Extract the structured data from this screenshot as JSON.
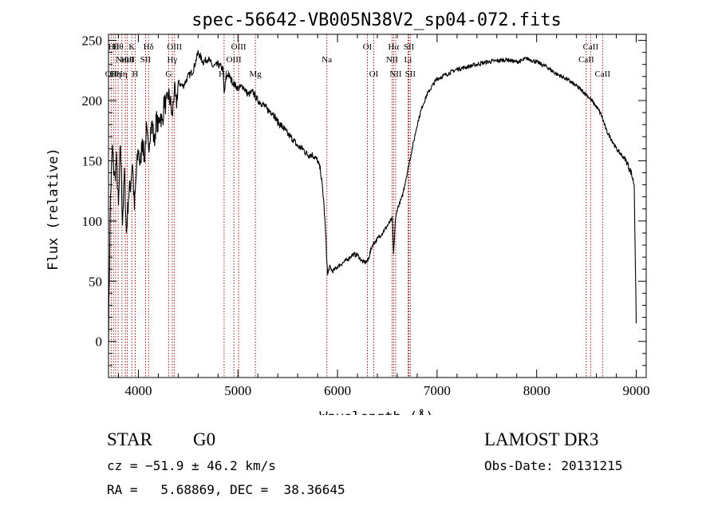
{
  "chart_data": {
    "type": "line",
    "title": "spec-56642-VB005N38V2_sp04-072.fits",
    "xlabel": "Wavelength (Å)",
    "ylabel": "Flux (relative)",
    "xlim": [
      3700,
      9100
    ],
    "ylim": [
      -30,
      255
    ],
    "xticks": [
      4000,
      5000,
      6000,
      7000,
      8000,
      9000
    ],
    "yticks": [
      0,
      50,
      100,
      150,
      200,
      250
    ],
    "series": [
      {
        "name": "flux",
        "x": [
          3700,
          3720,
          3740,
          3760,
          3780,
          3800,
          3820,
          3840,
          3860,
          3880,
          3900,
          3920,
          3940,
          3960,
          3980,
          4000,
          4020,
          4040,
          4060,
          4080,
          4100,
          4120,
          4140,
          4160,
          4180,
          4200,
          4220,
          4240,
          4260,
          4280,
          4300,
          4320,
          4340,
          4360,
          4380,
          4400,
          4450,
          4500,
          4550,
          4600,
          4650,
          4700,
          4750,
          4800,
          4850,
          4861,
          4880,
          4900,
          4950,
          5000,
          5050,
          5100,
          5150,
          5200,
          5250,
          5300,
          5350,
          5400,
          5450,
          5500,
          5550,
          5600,
          5650,
          5700,
          5750,
          5800,
          5830,
          5860,
          5880,
          5900,
          5920,
          5950,
          6000,
          6050,
          6100,
          6150,
          6200,
          6250,
          6300,
          6350,
          6400,
          6450,
          6500,
          6550,
          6563,
          6580,
          6600,
          6650,
          6700,
          6750,
          6800,
          6850,
          6900,
          6950,
          7000,
          7100,
          7200,
          7300,
          7400,
          7500,
          7600,
          7700,
          7800,
          7850,
          7900,
          8000,
          8100,
          8200,
          8300,
          8400,
          8500,
          8550,
          8600,
          8650,
          8700,
          8750,
          8800,
          8850,
          8900,
          8950,
          8980,
          9000
        ],
        "y": [
          5,
          120,
          160,
          135,
          150,
          110,
          165,
          100,
          140,
          90,
          120,
          130,
          150,
          110,
          140,
          160,
          145,
          170,
          150,
          175,
          160,
          175,
          180,
          165,
          185,
          178,
          190,
          180,
          200,
          195,
          205,
          200,
          185,
          210,
          195,
          215,
          212,
          220,
          225,
          240,
          232,
          235,
          228,
          230,
          226,
          205,
          218,
          222,
          215,
          210,
          212,
          205,
          207,
          200,
          197,
          192,
          190,
          182,
          178,
          172,
          168,
          162,
          160,
          155,
          155,
          150,
          142,
          118,
          90,
          55,
          62,
          58,
          62,
          65,
          68,
          72,
          72,
          66,
          66,
          80,
          85,
          90,
          96,
          102,
          72,
          100,
          110,
          120,
          140,
          160,
          180,
          195,
          205,
          212,
          218,
          222,
          226,
          228,
          230,
          232,
          233,
          234,
          232,
          233,
          235,
          232,
          228,
          222,
          218,
          212,
          205,
          200,
          195,
          188,
          175,
          168,
          160,
          155,
          150,
          140,
          130,
          15
        ]
      }
    ],
    "lines": [
      {
        "w": 3727,
        "label": "OII",
        "row": 2
      },
      {
        "w": 3750,
        "label": "Hθ",
        "row": 0
      },
      {
        "w": 3771,
        "label": "Hη",
        "row": 2
      },
      {
        "w": 3797,
        "label": "Hθ",
        "row": 0
      },
      {
        "w": 3835,
        "label": "Hη",
        "row": 2
      },
      {
        "w": 3869,
        "label": "NeIII",
        "row": 1
      },
      {
        "w": 3889,
        "label": "HeI",
        "row": 1
      },
      {
        "w": 3934,
        "label": "K",
        "row": 0
      },
      {
        "w": 3968,
        "label": "H",
        "row": 2
      },
      {
        "w": 4072,
        "label": "SII",
        "row": 1
      },
      {
        "w": 4102,
        "label": "Hδ",
        "row": 0
      },
      {
        "w": 4304,
        "label": "G",
        "row": 2
      },
      {
        "w": 4340,
        "label": "Hγ",
        "row": 1
      },
      {
        "w": 4363,
        "label": "OIII",
        "row": 0
      },
      {
        "w": 4861,
        "label": "Hβ",
        "row": 2
      },
      {
        "w": 4959,
        "label": "OIII",
        "row": 1
      },
      {
        "w": 5007,
        "label": "OIII",
        "row": 0
      },
      {
        "w": 5175,
        "label": "Mg",
        "row": 2
      },
      {
        "w": 5893,
        "label": "Na",
        "row": 1
      },
      {
        "w": 6300,
        "label": "OI",
        "row": 0
      },
      {
        "w": 6364,
        "label": "OI",
        "row": 2
      },
      {
        "w": 6548,
        "label": "NII",
        "row": 1
      },
      {
        "w": 6563,
        "label": "Hα",
        "row": 0
      },
      {
        "w": 6584,
        "label": "NII",
        "row": 2
      },
      {
        "w": 6708,
        "label": "Li",
        "row": 1
      },
      {
        "w": 6717,
        "label": "SII",
        "row": 0
      },
      {
        "w": 6731,
        "label": "SII",
        "row": 2
      },
      {
        "w": 8498,
        "label": "CaII",
        "row": 1
      },
      {
        "w": 8542,
        "label": "CaII",
        "row": 0
      },
      {
        "w": 8662,
        "label": "CaII",
        "row": 2
      }
    ]
  },
  "info": {
    "object_class": "STAR",
    "subclass": "G0",
    "survey": "LAMOST DR3",
    "redshift": "cz = −51.9 ± 46.2 km/s",
    "obs_date": "Obs-Date: 20131215",
    "coords": "RA =   5.68869, DEC =  38.36645"
  },
  "colors": {
    "spectrum": "#000000",
    "line_marker": "#8b0000",
    "axes": "#000000"
  }
}
